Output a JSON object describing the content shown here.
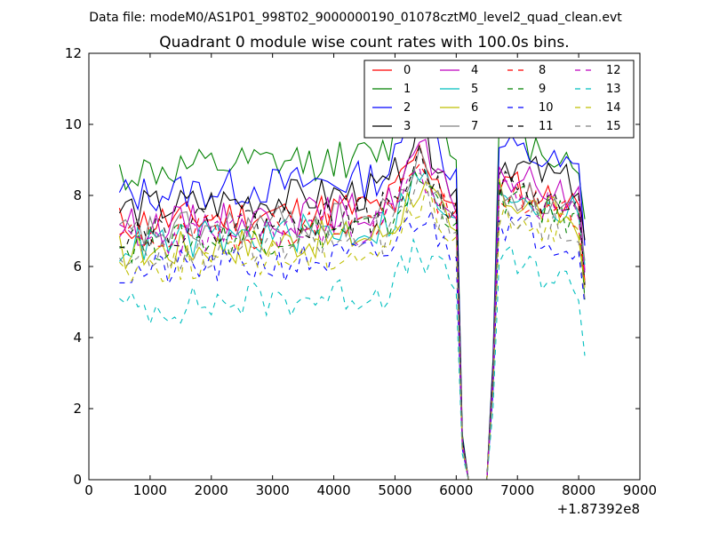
{
  "chart_data": {
    "type": "line",
    "suptitle": "Data file: modeM0/AS1P01_998T02_9000000190_01078cztM0_level2_quad_clean.evt",
    "title": "Quadrant 0 module wise count rates with 100.0s bins.",
    "xlabel": "",
    "ylabel": "",
    "x_offset_label": "+1.87392e8",
    "xlim": [
      0,
      9000
    ],
    "ylim": [
      0,
      12
    ],
    "xticks": [
      "0",
      "1000",
      "2000",
      "3000",
      "4000",
      "5000",
      "6000",
      "7000",
      "8000",
      "9000"
    ],
    "yticks": [
      "0",
      "2",
      "4",
      "6",
      "8",
      "10",
      "12"
    ],
    "legend_position": "upper-right",
    "x_start": 500,
    "x_step": 100,
    "x_end": 8100,
    "gap": {
      "x_start": 6000,
      "x_zero_from": 6200,
      "x_zero_to": 6500,
      "x_resume": 6700
    },
    "series": [
      {
        "name": "0",
        "color": "#ff0000",
        "dash": "solid",
        "level": 7.2,
        "bump": 1.4,
        "after": 7.2,
        "seed": 11
      },
      {
        "name": "1",
        "color": "#008000",
        "dash": "solid",
        "level": 8.6,
        "bump": 2.2,
        "after": 8.5,
        "seed": 12
      },
      {
        "name": "2",
        "color": "#0000ff",
        "dash": "solid",
        "level": 8.0,
        "bump": 1.8,
        "after": 8.2,
        "seed": 13
      },
      {
        "name": "3",
        "color": "#000000",
        "dash": "solid",
        "level": 7.6,
        "bump": 1.6,
        "after": 7.8,
        "seed": 14
      },
      {
        "name": "4",
        "color": "#bf00bf",
        "dash": "solid",
        "level": 7.1,
        "bump": 1.6,
        "after": 7.4,
        "seed": 15
      },
      {
        "name": "5",
        "color": "#00bfbf",
        "dash": "solid",
        "level": 6.6,
        "bump": 1.3,
        "after": 7.0,
        "seed": 16
      },
      {
        "name": "6",
        "color": "#bfbf00",
        "dash": "solid",
        "level": 6.4,
        "bump": 1.3,
        "after": 6.8,
        "seed": 17
      },
      {
        "name": "7",
        "color": "#808080",
        "dash": "solid",
        "level": 6.9,
        "bump": 1.4,
        "after": 7.0,
        "seed": 18
      },
      {
        "name": "8",
        "color": "#ff0000",
        "dash": "dashed",
        "level": 6.8,
        "bump": 1.3,
        "after": 6.9,
        "seed": 19
      },
      {
        "name": "9",
        "color": "#008000",
        "dash": "dashed",
        "level": 6.6,
        "bump": 1.3,
        "after": 6.8,
        "seed": 20
      },
      {
        "name": "10",
        "color": "#0000ff",
        "dash": "dashed",
        "level": 5.8,
        "bump": 1.1,
        "after": 6.1,
        "seed": 21
      },
      {
        "name": "11",
        "color": "#000000",
        "dash": "dashed",
        "level": 7.0,
        "bump": 1.4,
        "after": 7.1,
        "seed": 22
      },
      {
        "name": "12",
        "color": "#bf00bf",
        "dash": "dashed",
        "level": 6.7,
        "bump": 1.3,
        "after": 6.9,
        "seed": 23
      },
      {
        "name": "13",
        "color": "#00bfbf",
        "dash": "dashed",
        "level": 4.8,
        "bump": 1.0,
        "after": 5.0,
        "seed": 24
      },
      {
        "name": "14",
        "color": "#bfbf00",
        "dash": "dashed",
        "level": 6.0,
        "bump": 1.2,
        "after": 6.4,
        "seed": 25
      },
      {
        "name": "15",
        "color": "#808080",
        "dash": "dashed",
        "level": 6.3,
        "bump": 1.3,
        "after": 6.5,
        "seed": 26
      }
    ]
  }
}
